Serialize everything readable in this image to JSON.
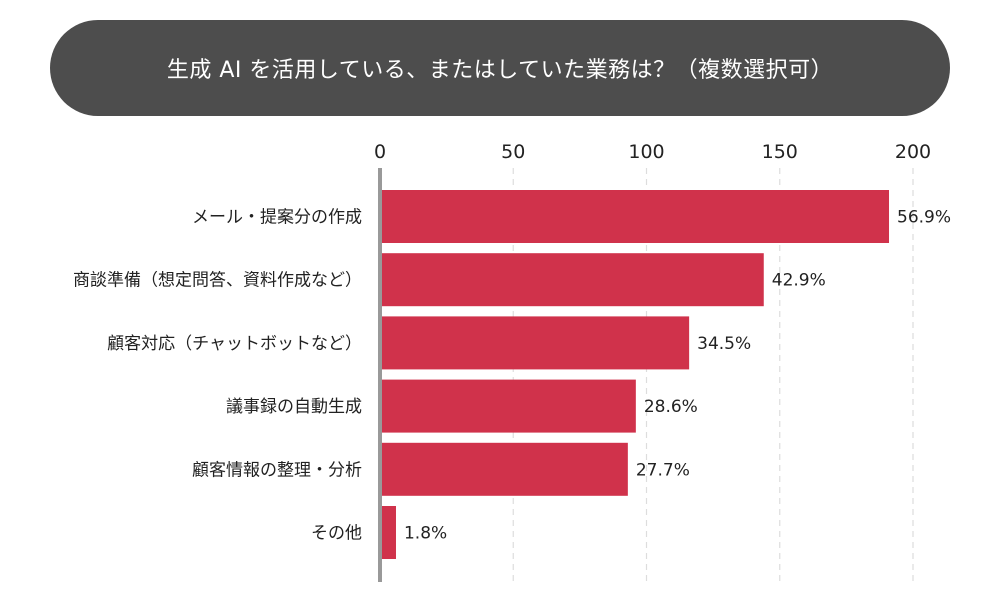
{
  "chart_data": {
    "type": "bar",
    "orientation": "horizontal",
    "title": "生成 AI を活用している、またはしていた業務は？（複数選択可）",
    "categories": [
      "メール・提案分の作成",
      "商談準備（想定問答、資料作成など）",
      "顧客対応（チャットボットなど）",
      "議事録の自動生成",
      "顧客情報の整理・分析",
      "その他"
    ],
    "values": [
      191,
      144,
      116,
      96,
      93,
      6
    ],
    "data_labels": [
      "56.9%",
      "42.9%",
      "34.5%",
      "28.6%",
      "27.7%",
      "1.8%"
    ],
    "xlim": [
      0,
      200
    ],
    "xticks": [
      0,
      50,
      100,
      150,
      200
    ],
    "grid": "vertical dashed",
    "bar_color": "#d0324b",
    "axis_color": "#999999"
  }
}
